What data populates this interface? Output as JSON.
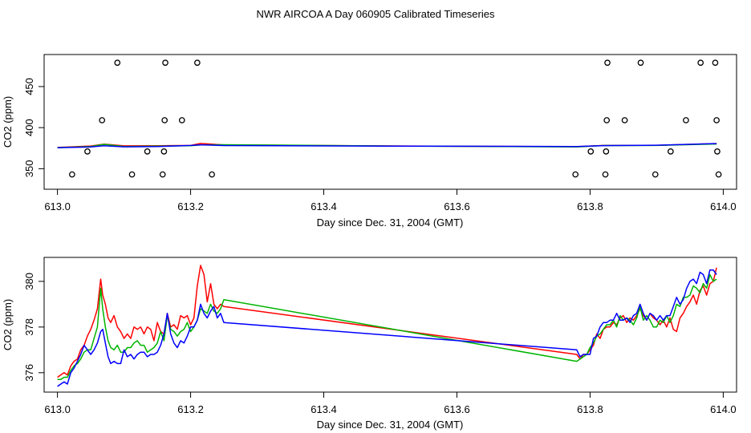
{
  "figure_title": "NWR AIRCOA A  Day 060905  Calibrated Timeseries",
  "chart_data": [
    {
      "type": "scatter+line",
      "title": "",
      "xlabel": "Day since Dec. 31, 2004 (GMT)",
      "ylabel": "CO2 (ppm)",
      "xlim": [
        612.98,
        614.02
      ],
      "ylim": [
        325.0,
        489.0
      ],
      "xticks": [
        "613.0",
        "613.2",
        "613.4",
        "613.6",
        "613.8",
        "614.0"
      ],
      "yticks": [
        "350",
        "400",
        "450"
      ],
      "grid": false,
      "calibration_points": [
        {
          "x": 613.022,
          "y": 343
        },
        {
          "x": 613.045,
          "y": 371
        },
        {
          "x": 613.067,
          "y": 409
        },
        {
          "x": 613.09,
          "y": 479
        },
        {
          "x": 613.112,
          "y": 343
        },
        {
          "x": 613.135,
          "y": 371
        },
        {
          "x": 613.158,
          "y": 343
        },
        {
          "x": 613.16,
          "y": 371
        },
        {
          "x": 613.161,
          "y": 409
        },
        {
          "x": 613.162,
          "y": 479
        },
        {
          "x": 613.187,
          "y": 409
        },
        {
          "x": 613.21,
          "y": 479
        },
        {
          "x": 613.232,
          "y": 343
        },
        {
          "x": 613.778,
          "y": 343
        },
        {
          "x": 613.801,
          "y": 371
        },
        {
          "x": 613.823,
          "y": 343
        },
        {
          "x": 613.824,
          "y": 371
        },
        {
          "x": 613.825,
          "y": 409
        },
        {
          "x": 613.826,
          "y": 479
        },
        {
          "x": 613.852,
          "y": 409
        },
        {
          "x": 613.876,
          "y": 479
        },
        {
          "x": 613.898,
          "y": 343
        },
        {
          "x": 613.921,
          "y": 371
        },
        {
          "x": 613.944,
          "y": 409
        },
        {
          "x": 613.966,
          "y": 479
        },
        {
          "x": 613.988,
          "y": 479
        },
        {
          "x": 613.99,
          "y": 409
        },
        {
          "x": 613.991,
          "y": 371
        },
        {
          "x": 613.993,
          "y": 343
        }
      ],
      "series": [
        {
          "name": "red",
          "color": "#ff0000",
          "x": [
            613.0,
            613.05,
            613.07,
            613.1,
            613.15,
            613.2,
            613.215,
            613.25,
            613.5,
            613.78,
            613.82,
            613.9,
            613.99
          ],
          "y": [
            375.9,
            377.6,
            380.0,
            377.8,
            378.0,
            378.3,
            380.7,
            378.9,
            377.7,
            376.8,
            378.3,
            378.4,
            380.6
          ]
        },
        {
          "name": "green",
          "color": "#00b400",
          "x": [
            613.0,
            613.05,
            613.07,
            613.1,
            613.15,
            613.2,
            613.215,
            613.25,
            613.5,
            613.78,
            613.82,
            613.9,
            613.99
          ],
          "y": [
            375.7,
            376.9,
            379.7,
            377.0,
            377.4,
            378.0,
            378.9,
            379.2,
            377.6,
            376.5,
            378.2,
            378.3,
            380.1
          ]
        },
        {
          "name": "blue",
          "color": "#0000ff",
          "x": [
            613.0,
            613.05,
            613.07,
            613.1,
            613.15,
            613.2,
            613.215,
            613.25,
            613.5,
            613.78,
            613.82,
            613.9,
            613.99
          ],
          "y": [
            375.5,
            376.5,
            378.0,
            376.6,
            376.9,
            378.3,
            379.1,
            378.2,
            377.5,
            377.0,
            378.1,
            378.6,
            380.5
          ]
        }
      ]
    },
    {
      "type": "line",
      "title": "",
      "xlabel": "Day since Dec. 31, 2004 (GMT)",
      "ylabel": "CO2 (ppm)",
      "xlim": [
        612.98,
        614.02
      ],
      "ylim": [
        375.15,
        381.05
      ],
      "xticks": [
        "613.0",
        "613.2",
        "613.4",
        "613.6",
        "613.8",
        "614.0"
      ],
      "yticks": [
        "376",
        "378",
        "380"
      ],
      "grid": false,
      "series": [
        {
          "name": "red",
          "color": "#ff0000",
          "x": [
            613.0,
            613.005,
            613.01,
            613.015,
            613.02,
            613.025,
            613.03,
            613.035,
            613.04,
            613.045,
            613.05,
            613.055,
            613.06,
            613.065,
            613.068,
            613.072,
            613.076,
            613.08,
            613.085,
            613.09,
            613.095,
            613.1,
            613.105,
            613.11,
            613.115,
            613.12,
            613.125,
            613.13,
            613.135,
            613.14,
            613.145,
            613.15,
            613.155,
            613.16,
            613.165,
            613.17,
            613.175,
            613.18,
            613.185,
            613.19,
            613.195,
            613.2,
            613.205,
            613.21,
            613.215,
            613.22,
            613.225,
            613.23,
            613.235,
            613.24,
            613.245,
            613.25,
            613.78,
            613.785,
            613.79,
            613.795,
            613.8,
            613.805,
            613.81,
            613.815,
            613.82,
            613.825,
            613.83,
            613.835,
            613.84,
            613.845,
            613.85,
            613.855,
            613.86,
            613.865,
            613.87,
            613.875,
            613.88,
            613.885,
            613.89,
            613.895,
            613.9,
            613.905,
            613.91,
            613.915,
            613.92,
            613.925,
            613.93,
            613.935,
            613.94,
            613.945,
            613.95,
            613.955,
            613.96,
            613.965,
            613.97,
            613.975,
            613.98,
            613.985,
            613.99
          ],
          "y": [
            375.8,
            375.9,
            376.0,
            375.9,
            376.3,
            376.5,
            376.6,
            377.0,
            377.2,
            377.6,
            377.9,
            378.3,
            378.8,
            380.1,
            379.4,
            379.0,
            378.4,
            378.2,
            378.5,
            378.0,
            377.8,
            377.5,
            377.7,
            377.5,
            378.0,
            377.9,
            378.0,
            377.7,
            378.0,
            377.9,
            377.4,
            378.2,
            377.8,
            377.7,
            378.6,
            378.0,
            378.1,
            377.9,
            378.5,
            378.4,
            378.5,
            378.1,
            378.4,
            379.8,
            380.7,
            380.3,
            379.1,
            379.9,
            379.0,
            378.8,
            379.0,
            378.9,
            376.8,
            376.6,
            376.8,
            376.8,
            377.0,
            377.2,
            377.7,
            377.5,
            377.9,
            378.0,
            378.0,
            378.2,
            378.1,
            378.4,
            378.5,
            378.2,
            378.4,
            378.3,
            378.5,
            378.8,
            378.5,
            378.3,
            378.6,
            378.4,
            378.3,
            378.1,
            378.3,
            378.0,
            378.4,
            377.9,
            377.8,
            378.4,
            378.6,
            378.9,
            379.1,
            379.4,
            379.0,
            379.6,
            379.8,
            379.4,
            379.9,
            380.0,
            380.6
          ]
        },
        {
          "name": "green",
          "color": "#00b400",
          "x": [
            613.0,
            613.005,
            613.01,
            613.015,
            613.02,
            613.025,
            613.03,
            613.035,
            613.04,
            613.045,
            613.05,
            613.055,
            613.06,
            613.065,
            613.068,
            613.072,
            613.076,
            613.08,
            613.085,
            613.09,
            613.095,
            613.1,
            613.105,
            613.11,
            613.115,
            613.12,
            613.125,
            613.13,
            613.135,
            613.14,
            613.145,
            613.15,
            613.155,
            613.16,
            613.165,
            613.17,
            613.175,
            613.18,
            613.185,
            613.19,
            613.195,
            613.2,
            613.205,
            613.21,
            613.215,
            613.22,
            613.225,
            613.23,
            613.235,
            613.24,
            613.245,
            613.25,
            613.78,
            613.785,
            613.79,
            613.795,
            613.8,
            613.805,
            613.81,
            613.815,
            613.82,
            613.825,
            613.83,
            613.835,
            613.84,
            613.845,
            613.85,
            613.855,
            613.86,
            613.865,
            613.87,
            613.875,
            613.88,
            613.885,
            613.89,
            613.895,
            613.9,
            613.905,
            613.91,
            613.915,
            613.92,
            613.925,
            613.93,
            613.935,
            613.94,
            613.945,
            613.95,
            613.955,
            613.96,
            613.965,
            613.97,
            613.975,
            613.98,
            613.985,
            613.99
          ],
          "y": [
            375.7,
            375.7,
            375.8,
            375.8,
            376.1,
            376.3,
            376.4,
            376.6,
            376.9,
            377.0,
            377.0,
            377.5,
            378.0,
            379.7,
            378.8,
            378.0,
            377.4,
            377.1,
            377.0,
            377.2,
            376.9,
            376.9,
            377.1,
            377.1,
            377.3,
            377.4,
            377.2,
            377.2,
            376.9,
            377.0,
            377.1,
            377.3,
            377.8,
            377.4,
            378.5,
            377.9,
            377.8,
            377.6,
            377.8,
            377.9,
            378.2,
            377.8,
            378.0,
            378.3,
            378.8,
            378.7,
            378.6,
            379.0,
            378.7,
            378.6,
            378.8,
            379.2,
            376.5,
            376.6,
            376.7,
            376.8,
            377.1,
            377.3,
            377.6,
            377.7,
            377.9,
            378.1,
            378.1,
            378.3,
            378.0,
            378.5,
            378.3,
            378.4,
            378.3,
            378.1,
            378.4,
            378.9,
            378.3,
            378.5,
            378.3,
            378.0,
            378.0,
            378.3,
            378.2,
            378.5,
            378.2,
            378.5,
            379.0,
            378.9,
            379.3,
            379.3,
            379.4,
            379.8,
            379.7,
            379.5,
            379.9,
            379.7,
            380.3,
            380.0,
            380.1
          ]
        },
        {
          "name": "blue",
          "color": "#0000ff",
          "x": [
            613.0,
            613.005,
            613.01,
            613.015,
            613.02,
            613.025,
            613.03,
            613.035,
            613.04,
            613.045,
            613.05,
            613.055,
            613.06,
            613.065,
            613.068,
            613.072,
            613.076,
            613.08,
            613.085,
            613.09,
            613.095,
            613.1,
            613.105,
            613.11,
            613.115,
            613.12,
            613.125,
            613.13,
            613.135,
            613.14,
            613.145,
            613.15,
            613.155,
            613.16,
            613.165,
            613.17,
            613.175,
            613.18,
            613.185,
            613.19,
            613.195,
            613.2,
            613.205,
            613.21,
            613.215,
            613.22,
            613.225,
            613.23,
            613.235,
            613.24,
            613.245,
            613.25,
            613.78,
            613.785,
            613.79,
            613.795,
            613.8,
            613.805,
            613.81,
            613.815,
            613.82,
            613.825,
            613.83,
            613.835,
            613.84,
            613.845,
            613.85,
            613.855,
            613.86,
            613.865,
            613.87,
            613.875,
            613.88,
            613.885,
            613.89,
            613.895,
            613.9,
            613.905,
            613.91,
            613.915,
            613.92,
            613.925,
            613.93,
            613.935,
            613.94,
            613.945,
            613.95,
            613.955,
            613.96,
            613.965,
            613.97,
            613.975,
            613.98,
            613.985,
            613.99
          ],
          "y": [
            375.4,
            375.5,
            375.6,
            375.5,
            376.0,
            376.2,
            376.5,
            376.8,
            377.2,
            377.0,
            376.8,
            377.0,
            377.3,
            377.8,
            377.9,
            377.3,
            376.7,
            376.4,
            376.5,
            376.4,
            376.4,
            377.0,
            376.7,
            376.8,
            376.6,
            376.8,
            376.9,
            376.9,
            376.7,
            376.8,
            376.8,
            376.9,
            377.2,
            377.7,
            378.6,
            377.7,
            377.3,
            377.1,
            377.4,
            377.3,
            377.6,
            378.0,
            378.0,
            378.3,
            379.0,
            378.6,
            378.4,
            378.7,
            378.9,
            378.4,
            378.6,
            378.2,
            377.0,
            376.7,
            376.8,
            376.8,
            376.8,
            377.5,
            377.6,
            378.0,
            378.2,
            378.2,
            378.3,
            378.3,
            378.6,
            378.3,
            378.3,
            378.4,
            378.2,
            378.5,
            378.6,
            379.0,
            378.6,
            378.3,
            378.6,
            378.5,
            378.3,
            378.5,
            378.3,
            378.5,
            378.5,
            378.9,
            379.3,
            379.0,
            379.2,
            379.7,
            380.0,
            380.1,
            379.9,
            380.4,
            380.3,
            379.9,
            380.5,
            380.5,
            380.3
          ]
        }
      ]
    }
  ]
}
